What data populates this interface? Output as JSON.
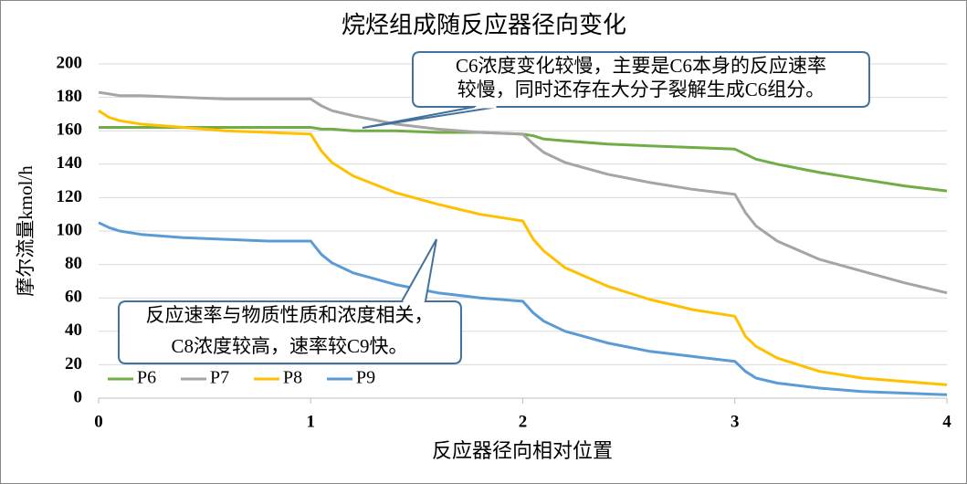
{
  "chart_data": {
    "type": "line",
    "title": "烷烃组成随反应器径向变化",
    "xlabel": "反应器径向相对位置",
    "ylabel": "摩尔流量kmol/h",
    "x": [
      0,
      0.05,
      0.1,
      0.2,
      0.4,
      0.6,
      0.8,
      1,
      1.05,
      1.1,
      1.2,
      1.4,
      1.6,
      1.8,
      2,
      2.05,
      2.1,
      2.2,
      2.4,
      2.6,
      2.8,
      3,
      3.05,
      3.1,
      3.2,
      3.4,
      3.6,
      3.8,
      4
    ],
    "series": [
      {
        "name": "P6",
        "color": "#70ad47",
        "values": [
          162,
          162,
          162,
          162,
          162,
          162,
          162,
          162,
          161,
          161,
          160,
          160,
          159,
          159,
          158,
          157,
          155,
          154,
          152,
          151,
          150,
          149,
          146,
          143,
          140,
          135,
          131,
          127,
          124
        ]
      },
      {
        "name": "P7",
        "color": "#a5a5a5",
        "values": [
          183,
          182,
          181,
          181,
          180,
          179,
          179,
          179,
          175,
          172,
          169,
          164,
          161,
          159,
          158,
          152,
          147,
          141,
          134,
          129,
          125,
          122,
          111,
          103,
          94,
          83,
          76,
          69,
          63
        ]
      },
      {
        "name": "P8",
        "color": "#ffc000",
        "values": [
          172,
          168,
          166,
          164,
          162,
          160,
          159,
          158,
          148,
          141,
          133,
          123,
          116,
          110,
          106,
          95,
          88,
          78,
          67,
          59,
          53,
          49,
          37,
          31,
          24,
          16,
          12,
          10,
          8
        ]
      },
      {
        "name": "P9",
        "color": "#5b9bd5",
        "values": [
          105,
          102,
          100,
          98,
          96,
          95,
          94,
          94,
          86,
          81,
          75,
          68,
          63,
          60,
          58,
          51,
          46,
          40,
          33,
          28,
          25,
          22,
          16,
          12,
          9,
          6,
          4,
          3,
          2
        ]
      }
    ],
    "xlim": [
      0,
      4
    ],
    "xticks": [
      0,
      1,
      2,
      3,
      4
    ],
    "ylim": [
      0,
      200
    ],
    "yticks": [
      0,
      20,
      40,
      60,
      80,
      100,
      120,
      140,
      160,
      180,
      200
    ],
    "grid": true,
    "legend": "lower left",
    "annotations": [
      {
        "lines": [
          "C6浓度变化较慢，主要是C6本身的反应速率",
          "较慢，同时还存在大分子裂解生成C6组分。"
        ]
      },
      {
        "lines": [
          "反应速率与物质性质和浓度相关，",
          "C8浓度较高，速率较C9快。"
        ]
      }
    ]
  }
}
